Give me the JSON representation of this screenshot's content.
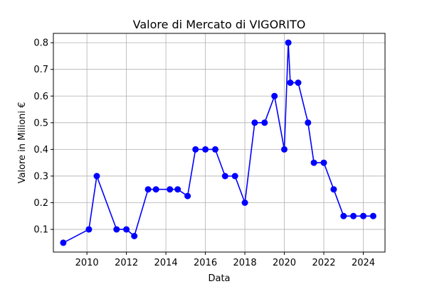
{
  "chart_data": {
    "type": "line",
    "title": "Valore di Mercato di VIGORITO",
    "xlabel": "Data",
    "ylabel": "Valore in Milioni €",
    "xlim": [
      2008.3,
      2025.1
    ],
    "ylim": [
      0.015,
      0.835
    ],
    "xticks": [
      2010,
      2012,
      2014,
      2016,
      2018,
      2020,
      2022,
      2024
    ],
    "xtick_labels": [
      "2010",
      "2012",
      "2014",
      "2016",
      "2018",
      "2020",
      "2022",
      "2024"
    ],
    "yticks": [
      0.1,
      0.2,
      0.3,
      0.4,
      0.5,
      0.6,
      0.7,
      0.8
    ],
    "ytick_labels": [
      "0.1",
      "0.2",
      "0.3",
      "0.4",
      "0.5",
      "0.6",
      "0.7",
      "0.8"
    ],
    "grid": true,
    "series": [
      {
        "color": "#0000ff",
        "marker": "circle",
        "x": [
          2008.8,
          2010.1,
          2010.5,
          2011.5,
          2012.0,
          2012.4,
          2013.1,
          2013.5,
          2014.2,
          2014.6,
          2015.1,
          2015.5,
          2016.0,
          2016.5,
          2017.0,
          2017.5,
          2018.0,
          2018.5,
          2019.0,
          2019.5,
          2020.0,
          2020.2,
          2020.3,
          2020.7,
          2021.2,
          2021.5,
          2022.0,
          2022.5,
          2023.0,
          2023.5,
          2024.0,
          2024.5
        ],
        "y": [
          0.05,
          0.1,
          0.3,
          0.1,
          0.1,
          0.075,
          0.25,
          0.25,
          0.25,
          0.25,
          0.225,
          0.4,
          0.4,
          0.4,
          0.3,
          0.3,
          0.2,
          0.5,
          0.5,
          0.6,
          0.4,
          0.8,
          0.65,
          0.65,
          0.5,
          0.35,
          0.35,
          0.25,
          0.15,
          0.15,
          0.15,
          0.15
        ]
      }
    ]
  }
}
